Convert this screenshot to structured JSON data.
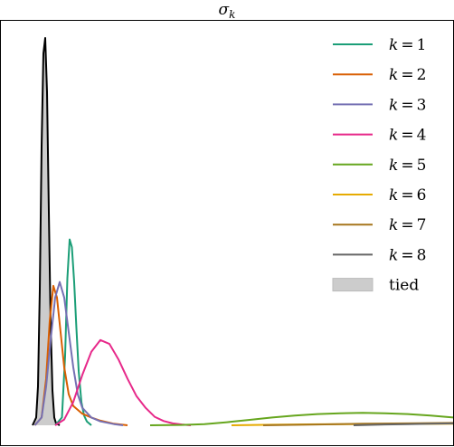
{
  "chart_data": {
    "type": "line",
    "title": "σk",
    "title_parts": {
      "base": "σ",
      "sub": "k"
    },
    "xlabel": "",
    "ylabel": "",
    "xlim": [
      0,
      1
    ],
    "ylim": [
      0,
      1
    ],
    "grid": false,
    "axis_ticks": false,
    "legend_position": "top-right",
    "series": [
      {
        "name": "k = 1",
        "var": "k",
        "eq": "=",
        "num": "1",
        "color": "#1b9e77",
        "kind": "line",
        "x": [
          0.12,
          0.135,
          0.142,
          0.147,
          0.152,
          0.157,
          0.162,
          0.167,
          0.172,
          0.178,
          0.184,
          0.19,
          0.2
        ],
        "y": [
          0.0,
          0.02,
          0.18,
          0.38,
          0.48,
          0.46,
          0.37,
          0.25,
          0.14,
          0.06,
          0.025,
          0.01,
          0.0
        ]
      },
      {
        "name": "k = 2",
        "var": "k",
        "eq": "=",
        "num": "2",
        "color": "#d95f02",
        "kind": "line",
        "x": [
          0.075,
          0.09,
          0.1,
          0.108,
          0.116,
          0.124,
          0.132,
          0.14,
          0.15,
          0.16,
          0.18,
          0.2,
          0.22,
          0.25,
          0.28
        ],
        "y": [
          0.0,
          0.02,
          0.12,
          0.27,
          0.36,
          0.33,
          0.24,
          0.15,
          0.08,
          0.05,
          0.03,
          0.02,
          0.012,
          0.004,
          0.0
        ]
      },
      {
        "name": "k = 3",
        "var": "k",
        "eq": "=",
        "num": "3",
        "color": "#7570b3",
        "kind": "line",
        "x": [
          0.075,
          0.09,
          0.1,
          0.11,
          0.12,
          0.13,
          0.14,
          0.15,
          0.16,
          0.17,
          0.18,
          0.2,
          0.22,
          0.25,
          0.27
        ],
        "y": [
          0.0,
          0.02,
          0.1,
          0.22,
          0.33,
          0.37,
          0.33,
          0.24,
          0.15,
          0.08,
          0.045,
          0.02,
          0.01,
          0.003,
          0.0
        ]
      },
      {
        "name": "k = 4",
        "var": "k",
        "eq": "=",
        "num": "4",
        "color": "#e7298a",
        "kind": "line",
        "x": [
          0.12,
          0.14,
          0.16,
          0.18,
          0.2,
          0.22,
          0.24,
          0.26,
          0.28,
          0.3,
          0.32,
          0.34,
          0.36,
          0.38,
          0.4,
          0.42
        ],
        "y": [
          0.0,
          0.015,
          0.06,
          0.13,
          0.19,
          0.22,
          0.21,
          0.17,
          0.12,
          0.075,
          0.045,
          0.022,
          0.011,
          0.005,
          0.002,
          0.0
        ]
      },
      {
        "name": "k = 5",
        "var": "k",
        "eq": "=",
        "num": "5",
        "color": "#66a61e",
        "kind": "line",
        "x": [
          0.33,
          0.4,
          0.45,
          0.5,
          0.55,
          0.6,
          0.65,
          0.7,
          0.75,
          0.8,
          0.85,
          0.9,
          0.95,
          1.0
        ],
        "y": [
          0.0,
          0.001,
          0.003,
          0.008,
          0.014,
          0.02,
          0.025,
          0.029,
          0.031,
          0.032,
          0.031,
          0.029,
          0.025,
          0.02
        ]
      },
      {
        "name": "k = 6",
        "var": "k",
        "eq": "=",
        "num": "6",
        "color": "#e6ab02",
        "kind": "line",
        "x": [
          0.51,
          0.6,
          0.7,
          0.8,
          0.9,
          1.0
        ],
        "y": [
          0.0,
          0.0015,
          0.0025,
          0.003,
          0.0035,
          0.004
        ]
      },
      {
        "name": "k = 7",
        "var": "k",
        "eq": "=",
        "num": "7",
        "color": "#a6761d",
        "kind": "line",
        "x": [
          0.58,
          0.7,
          0.8,
          0.9,
          1.0
        ],
        "y": [
          0.0,
          0.002,
          0.004,
          0.005,
          0.006
        ]
      },
      {
        "name": "k = 8",
        "var": "k",
        "eq": "=",
        "num": "8",
        "color": "#666666",
        "kind": "line",
        "x": [
          0.78,
          0.85,
          0.9,
          0.95,
          1.0
        ],
        "y": [
          0.0,
          0.002,
          0.003,
          0.004,
          0.005
        ]
      },
      {
        "name": "tied",
        "color": "#cccccc",
        "kind": "area",
        "edge": "#000000",
        "x": [
          0.07,
          0.078,
          0.082,
          0.086,
          0.09,
          0.094,
          0.098,
          0.102,
          0.106,
          0.11,
          0.114,
          0.118,
          0.122,
          0.13
        ],
        "y": [
          0.0,
          0.02,
          0.1,
          0.35,
          0.72,
          0.96,
          1.0,
          0.86,
          0.55,
          0.26,
          0.09,
          0.02,
          0.005,
          0.0
        ]
      }
    ]
  }
}
